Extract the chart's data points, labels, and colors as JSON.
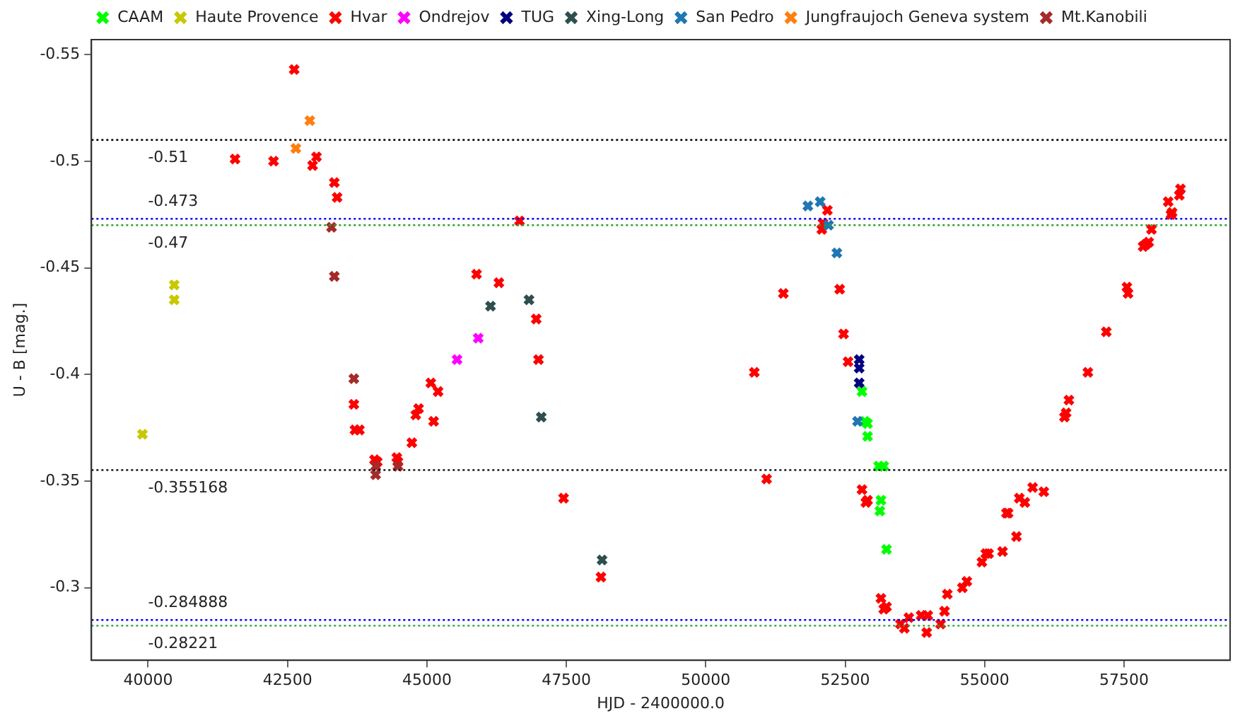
{
  "chart_data": {
    "type": "scatter",
    "xlabel": "HJD - 2400000.0",
    "ylabel": "U - B [mag.]",
    "xlim": [
      38985,
      59400
    ],
    "ylim": [
      -0.266,
      -0.557
    ],
    "xticks": [
      40000,
      42500,
      45000,
      47500,
      50000,
      52500,
      55000,
      57500
    ],
    "yticks": [
      -0.55,
      -0.5,
      -0.45,
      -0.4,
      -0.35,
      -0.3
    ],
    "grid": false,
    "legend": "top",
    "marker": "cross",
    "ref_lines": [
      {
        "axis": "y",
        "value": -0.51,
        "label": "-0.51",
        "color": "#000000",
        "line_style": "dotted"
      },
      {
        "axis": "y",
        "value": -0.473,
        "label": "-0.473",
        "color": "#0000ff",
        "line_style": "dotted"
      },
      {
        "axis": "y",
        "value": -0.47,
        "label": "-0.47",
        "color": "#2ca02c",
        "line_style": "dotted"
      },
      {
        "axis": "y",
        "value": -0.355168,
        "label": "-0.355168",
        "color": "#000000",
        "line_style": "dotted"
      },
      {
        "axis": "y",
        "value": -0.284888,
        "label": "-0.284888",
        "color": "#0000ff",
        "line_style": "dotted"
      },
      {
        "axis": "y",
        "value": -0.28221,
        "label": "-0.28221",
        "color": "#2ca02c",
        "line_style": "dotted"
      }
    ],
    "series": [
      {
        "name": "CAAM",
        "color": "#00ff00",
        "x": [
          52800,
          52850,
          52900,
          52900,
          53100,
          53190,
          53140,
          53120,
          53240
        ],
        "values": [
          -0.392,
          -0.378,
          -0.377,
          -0.371,
          -0.357,
          -0.357,
          -0.341,
          -0.336,
          -0.318
        ]
      },
      {
        "name": "Haute Provence",
        "color": "#c8c800",
        "x": [
          40470,
          40470,
          39900
        ],
        "values": [
          -0.442,
          -0.435,
          -0.372
        ]
      },
      {
        "name": "Hvar",
        "color": "#ff0000",
        "x": [
          42620,
          41560,
          42250,
          43020,
          42950,
          43340,
          43390,
          46660,
          45890,
          46290,
          46960,
          47000,
          45070,
          45200,
          43690,
          44850,
          44800,
          45120,
          43710,
          43790,
          44730,
          44060,
          44460,
          47450,
          48120,
          44110,
          44480,
          52180,
          52100,
          52080,
          51390,
          52400,
          52470,
          52550,
          50870,
          51090,
          52800,
          52870,
          52900,
          53140,
          53190,
          53240,
          53490,
          53560,
          53640,
          53860,
          53980,
          53960,
          54210,
          54280,
          54330,
          54600,
          54680,
          54950,
          55020,
          55070,
          55320,
          55570,
          55390,
          55420,
          55620,
          55720,
          55860,
          56060,
          56430,
          56460,
          56510,
          56850,
          57180,
          57550,
          57570,
          57840,
          57890,
          57940,
          57990,
          58290,
          58340,
          58360,
          58490,
          58510
        ],
        "values": [
          -0.543,
          -0.501,
          -0.5,
          -0.502,
          -0.498,
          -0.49,
          -0.483,
          -0.472,
          -0.447,
          -0.443,
          -0.426,
          -0.407,
          -0.396,
          -0.392,
          -0.386,
          -0.384,
          -0.381,
          -0.378,
          -0.374,
          -0.374,
          -0.368,
          -0.36,
          -0.361,
          -0.342,
          -0.305,
          -0.359,
          -0.359,
          -0.477,
          -0.471,
          -0.468,
          -0.438,
          -0.44,
          -0.419,
          -0.406,
          -0.401,
          -0.351,
          -0.346,
          -0.34,
          -0.341,
          -0.295,
          -0.29,
          -0.291,
          -0.283,
          -0.281,
          -0.286,
          -0.287,
          -0.287,
          -0.279,
          -0.283,
          -0.289,
          -0.297,
          -0.3,
          -0.303,
          -0.312,
          -0.316,
          -0.316,
          -0.317,
          -0.324,
          -0.335,
          -0.335,
          -0.342,
          -0.34,
          -0.347,
          -0.345,
          -0.38,
          -0.382,
          -0.388,
          -0.401,
          -0.42,
          -0.441,
          -0.438,
          -0.46,
          -0.461,
          -0.462,
          -0.468,
          -0.481,
          -0.475,
          -0.476,
          -0.484,
          -0.487
        ]
      },
      {
        "name": "Ondrejov",
        "color": "#ff00ff",
        "x": [
          45920,
          45540
        ],
        "values": [
          -0.417,
          -0.407
        ]
      },
      {
        "name": "TUG",
        "color": "#000080",
        "x": [
          52750,
          52750,
          52750
        ],
        "values": [
          -0.407,
          -0.403,
          -0.396
        ]
      },
      {
        "name": "Xing-Long",
        "color": "#2f4f4f",
        "x": [
          46140,
          46830,
          47050,
          48140
        ],
        "values": [
          -0.432,
          -0.435,
          -0.38,
          -0.313
        ]
      },
      {
        "name": "San Pedro",
        "color": "#1f77b4",
        "x": [
          51830,
          52050,
          52200,
          52350,
          52720
        ],
        "values": [
          -0.479,
          -0.481,
          -0.47,
          -0.457,
          -0.378
        ]
      },
      {
        "name": "Jungfraujoch Geneva system",
        "color": "#ff7f0e",
        "x": [
          42900,
          42650
        ],
        "values": [
          -0.519,
          -0.506
        ]
      },
      {
        "name": "Mt.Kanobili",
        "color": "#a52a2a",
        "x": [
          43290,
          43340,
          43690,
          44080,
          44080,
          44480
        ],
        "values": [
          -0.469,
          -0.446,
          -0.398,
          -0.357,
          -0.353,
          -0.357
        ]
      }
    ]
  }
}
